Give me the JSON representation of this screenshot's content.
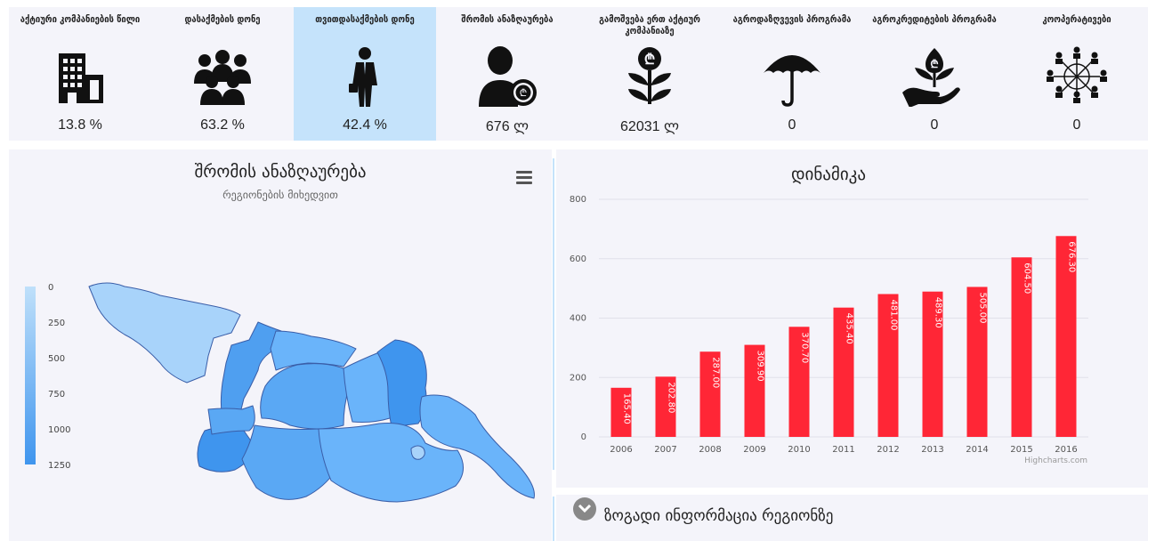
{
  "tiles": [
    {
      "title": "აქტიური კომპანიების წილი",
      "value": "13.8 %",
      "icon": "building-icon",
      "active": false
    },
    {
      "title": "დასაქმების დონე",
      "value": "63.2 %",
      "icon": "people-group-icon",
      "active": false
    },
    {
      "title": "თვითდასაქმების დონე",
      "value": "42.4 %",
      "icon": "businessman-icon",
      "active": true
    },
    {
      "title": "შრომის ანაზღაურება",
      "value": "676 ლ",
      "icon": "person-coin-icon",
      "active": false
    },
    {
      "title": "გამოშვება ერთ აქტიურ კომპანიაზე",
      "value": "62031 ლ",
      "icon": "coin-plant-icon",
      "active": false
    },
    {
      "title": "აგროდაზღვევის პროგრამა",
      "value": "0",
      "icon": "umbrella-icon",
      "active": false
    },
    {
      "title": "აგროკრედიტების პროგრამა",
      "value": "0",
      "icon": "hand-plant-icon",
      "active": false
    },
    {
      "title": "კოოპერატივები",
      "value": "0",
      "icon": "cooperative-network-icon",
      "active": false
    }
  ],
  "map": {
    "title": "შრომის ანაზღაურება",
    "subtitle": "რეგიონების მიხედვით",
    "legend": [
      "0",
      "250",
      "500",
      "750",
      "1000",
      "1250"
    ]
  },
  "chart": {
    "title": "დინამიკა",
    "credits": "Highcharts.com",
    "bar_color": "#ff2636"
  },
  "chart_data": {
    "type": "bar",
    "title": "დინამიკა",
    "categories": [
      "2006",
      "2007",
      "2008",
      "2009",
      "2010",
      "2011",
      "2012",
      "2013",
      "2014",
      "2015",
      "2016"
    ],
    "values": [
      165.4,
      202.8,
      287.0,
      309.9,
      370.7,
      435.4,
      481.0,
      489.3,
      505.0,
      604.5,
      676.3
    ],
    "labels": [
      "165.40",
      "202.80",
      "287.00",
      "309.90",
      "370.70",
      "435.40",
      "481.00",
      "489.30",
      "505.00",
      "604.50",
      "676.30"
    ],
    "yticks": [
      "0",
      "200",
      "400",
      "600",
      "800"
    ],
    "ylim": [
      0,
      800
    ],
    "grid": true
  },
  "region_info": {
    "title": "ზოგადი ინფორმაცია რეგიონზე"
  }
}
